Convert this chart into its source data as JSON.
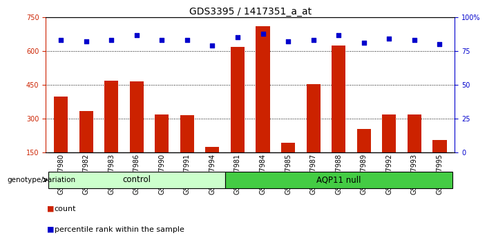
{
  "title": "GDS3395 / 1417351_a_at",
  "samples": [
    "GSM267980",
    "GSM267982",
    "GSM267983",
    "GSM267986",
    "GSM267990",
    "GSM267991",
    "GSM267994",
    "GSM267981",
    "GSM267984",
    "GSM267985",
    "GSM267987",
    "GSM267988",
    "GSM267989",
    "GSM267992",
    "GSM267993",
    "GSM267995"
  ],
  "counts": [
    400,
    335,
    470,
    465,
    320,
    315,
    175,
    620,
    710,
    195,
    455,
    625,
    255,
    320,
    320,
    205
  ],
  "percentile_ranks": [
    83,
    82,
    83,
    87,
    83,
    83,
    79,
    85,
    88,
    82,
    83,
    87,
    81,
    84,
    83,
    80
  ],
  "n_control": 7,
  "n_aqp11": 9,
  "bar_color": "#cc2200",
  "dot_color": "#0000cc",
  "control_bg": "#ccffcc",
  "aqp11_bg": "#44cc44",
  "yticks_left": [
    150,
    300,
    450,
    600,
    750
  ],
  "yticks_right": [
    0,
    25,
    50,
    75,
    100
  ],
  "ymin": 150,
  "ymax": 750,
  "pct_min": 0,
  "pct_max": 100,
  "gridlines": [
    300,
    450,
    600
  ],
  "title_fontsize": 10,
  "tick_fontsize": 7,
  "legend_count_label": "count",
  "legend_pct_label": "percentile rank within the sample",
  "genotype_label": "genotype/variation",
  "control_label": "control",
  "aqp11_label": "AQP11 null"
}
